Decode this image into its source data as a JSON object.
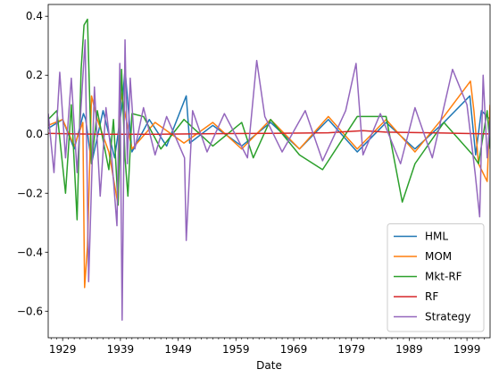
{
  "chart_data": {
    "type": "line",
    "title": "",
    "xlabel": "Date",
    "ylabel": "",
    "xlim": [
      1926.5,
      2003.0
    ],
    "ylim": [
      -0.69,
      0.44
    ],
    "x_ticks": [
      1929,
      1939,
      1949,
      1959,
      1969,
      1979,
      1989,
      1999
    ],
    "y_ticks": [
      -0.6,
      -0.4,
      -0.2,
      0.0,
      0.2,
      0.4
    ],
    "y_tick_labels": [
      "−0.6",
      "−0.4",
      "−0.2",
      "0.0",
      "0.2",
      "0.4"
    ],
    "legend_position": "lower-right",
    "grid": false,
    "series": [
      {
        "name": "HML",
        "color": "#1f77b4",
        "x": [
          1926.5,
          1929,
          1931,
          1932.6,
          1933,
          1934,
          1936,
          1938,
          1939.3,
          1939.8,
          1941,
          1944,
          1947,
          1950.4,
          1951,
          1955,
          1960,
          1965,
          1970,
          1975,
          1980,
          1985,
          1990,
          1995,
          1999.5,
          2000.5,
          2001.5,
          2003
        ],
        "y": [
          0.02,
          0.05,
          -0.05,
          0.07,
          0.05,
          -0.1,
          0.08,
          -0.08,
          0.1,
          0.22,
          -0.06,
          0.05,
          -0.04,
          0.13,
          -0.03,
          0.03,
          -0.04,
          0.04,
          -0.05,
          0.05,
          -0.06,
          0.04,
          -0.05,
          0.04,
          0.13,
          -0.07,
          0.08,
          0.05
        ]
      },
      {
        "name": "MOM",
        "color": "#ff7f0e",
        "x": [
          1926.5,
          1929,
          1931,
          1932.5,
          1932.8,
          1933.3,
          1934,
          1935,
          1937,
          1938.6,
          1939,
          1941,
          1945,
          1950,
          1955,
          1960,
          1965,
          1970,
          1975,
          1980,
          1985,
          1990,
          1995,
          1999.6,
          2000.2,
          2001,
          2002.5,
          2003
        ],
        "y": [
          0.03,
          0.05,
          -0.04,
          0.04,
          -0.52,
          -0.38,
          0.13,
          0.05,
          -0.06,
          -0.24,
          0.15,
          -0.05,
          0.04,
          -0.03,
          0.04,
          -0.05,
          0.05,
          -0.05,
          0.06,
          -0.05,
          0.05,
          -0.06,
          0.06,
          0.18,
          0.08,
          -0.1,
          -0.16,
          0.1
        ]
      },
      {
        "name": "Mkt-RF",
        "color": "#2ca02c",
        "x": [
          1926.5,
          1928,
          1929.5,
          1930.5,
          1931.5,
          1932.2,
          1932.7,
          1933.3,
          1934,
          1935,
          1937,
          1937.8,
          1938.6,
          1939.2,
          1939.8,
          1940.3,
          1941,
          1943,
          1946,
          1950,
          1955,
          1960,
          1962,
          1965,
          1970,
          1974,
          1980,
          1985,
          1987.8,
          1990,
          1995,
          2000,
          2001,
          2002.5,
          2003
        ],
        "y": [
          0.05,
          0.08,
          -0.2,
          0.1,
          -0.29,
          0.22,
          0.37,
          0.39,
          -0.1,
          0.08,
          -0.12,
          0.05,
          -0.24,
          0.22,
          -0.08,
          -0.21,
          0.07,
          0.06,
          -0.05,
          0.05,
          -0.04,
          0.04,
          -0.08,
          0.05,
          -0.07,
          -0.12,
          0.06,
          0.06,
          -0.23,
          -0.1,
          0.04,
          -0.07,
          -0.1,
          0.08,
          -0.05
        ]
      },
      {
        "name": "RF",
        "color": "#d62728",
        "x": [
          1926.5,
          1931,
          1936,
          1945,
          1955,
          1965,
          1975,
          1981,
          1985,
          1995,
          2003
        ],
        "y": [
          0.003,
          0.001,
          0.0,
          0.0,
          0.002,
          0.003,
          0.005,
          0.012,
          0.007,
          0.004,
          0.001
        ]
      },
      {
        "name": "Strategy",
        "color": "#9467bd",
        "x": [
          1926.5,
          1927.5,
          1928.5,
          1929.5,
          1930.5,
          1931.5,
          1932.3,
          1932.9,
          1933.5,
          1934.5,
          1935.5,
          1936.5,
          1937.5,
          1938.4,
          1938.9,
          1939.3,
          1939.8,
          1940.2,
          1940.7,
          1941.5,
          1943,
          1945,
          1947,
          1950.1,
          1950.4,
          1951.5,
          1954,
          1957,
          1961,
          1962.6,
          1964,
          1967,
          1971,
          1974,
          1978,
          1979.8,
          1981,
          1984,
          1987.5,
          1990,
          1993,
          1996.5,
          1999,
          2000.4,
          2001.2,
          2001.8,
          2002.5,
          2003
        ],
        "y": [
          0.07,
          -0.13,
          0.21,
          -0.08,
          0.19,
          -0.13,
          0.13,
          0.32,
          -0.5,
          0.16,
          -0.21,
          0.09,
          -0.08,
          -0.31,
          0.24,
          -0.63,
          0.32,
          -0.1,
          0.19,
          -0.05,
          0.09,
          -0.07,
          0.06,
          -0.08,
          -0.36,
          0.08,
          -0.06,
          0.07,
          -0.08,
          0.25,
          0.06,
          -0.06,
          0.08,
          -0.09,
          0.08,
          0.24,
          -0.07,
          0.07,
          -0.1,
          0.09,
          -0.08,
          0.22,
          0.1,
          -0.13,
          -0.28,
          0.2,
          -0.08,
          0.05
        ]
      }
    ]
  }
}
